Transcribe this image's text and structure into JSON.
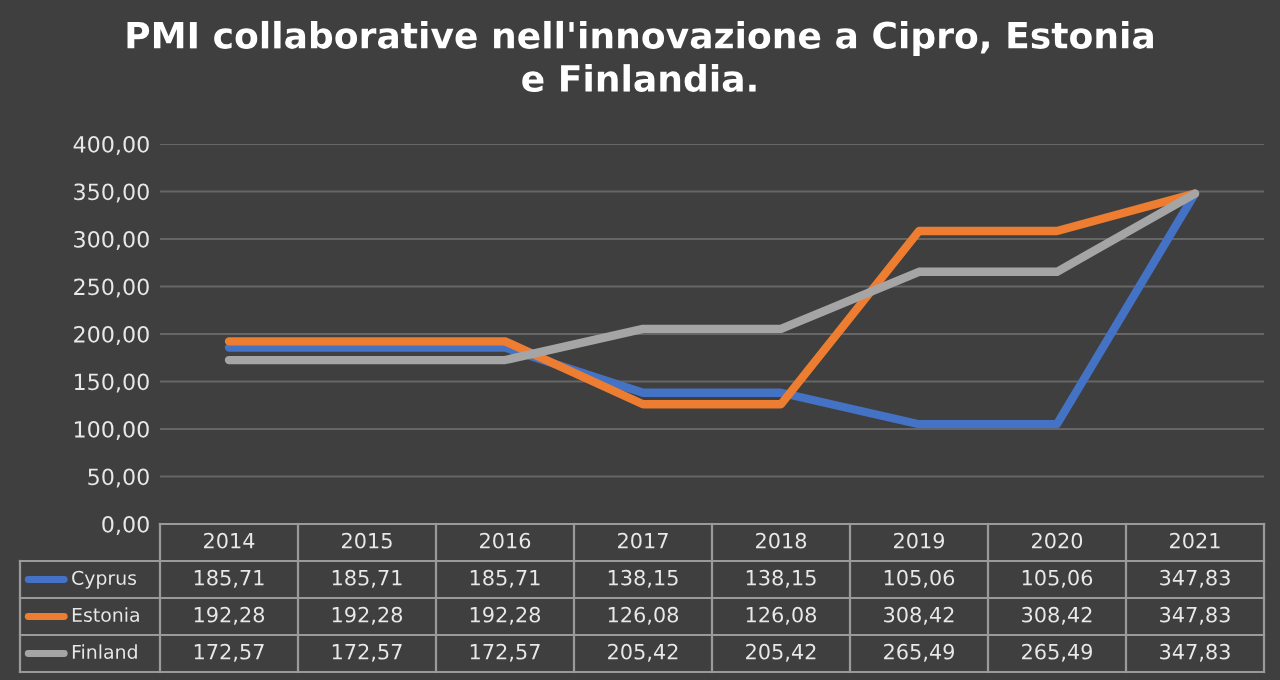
{
  "chart_data": {
    "type": "line",
    "title": "PMI collaborative nell'innovazione a Cipro, Estonia\ne Finlandia.",
    "categories": [
      "2014",
      "2015",
      "2016",
      "2017",
      "2018",
      "2019",
      "2020",
      "2021"
    ],
    "series": [
      {
        "name": "Cyprus",
        "color": "#4472c4",
        "values": [
          185.71,
          185.71,
          185.71,
          138.15,
          138.15,
          105.06,
          105.06,
          347.83
        ],
        "value_labels": [
          "185,71",
          "185,71",
          "185,71",
          "138,15",
          "138,15",
          "105,06",
          "105,06",
          "347,83"
        ]
      },
      {
        "name": "Estonia",
        "color": "#ed7d31",
        "values": [
          192.28,
          192.28,
          192.28,
          126.08,
          126.08,
          308.42,
          308.42,
          347.83
        ],
        "value_labels": [
          "192,28",
          "192,28",
          "192,28",
          "126,08",
          "126,08",
          "308,42",
          "308,42",
          "347,83"
        ]
      },
      {
        "name": "Finland",
        "color": "#a5a5a5",
        "values": [
          172.57,
          172.57,
          172.57,
          205.42,
          205.42,
          265.49,
          265.49,
          347.83
        ],
        "value_labels": [
          "172,57",
          "172,57",
          "172,57",
          "205,42",
          "205,42",
          "265,49",
          "265,49",
          "347,83"
        ]
      }
    ],
    "ylim": [
      0,
      400
    ],
    "yticks": [
      {
        "value": 0,
        "label": "0,00"
      },
      {
        "value": 50,
        "label": "50,00"
      },
      {
        "value": 100,
        "label": "100,00"
      },
      {
        "value": 150,
        "label": "150,00"
      },
      {
        "value": 200,
        "label": "200,00"
      },
      {
        "value": 250,
        "label": "250,00"
      },
      {
        "value": 300,
        "label": "300,00"
      },
      {
        "value": 350,
        "label": "350,00"
      },
      {
        "value": 400,
        "label": "400,00"
      }
    ],
    "grid": "y",
    "legend": "bottom",
    "marker": "none",
    "line_style": "solid"
  }
}
